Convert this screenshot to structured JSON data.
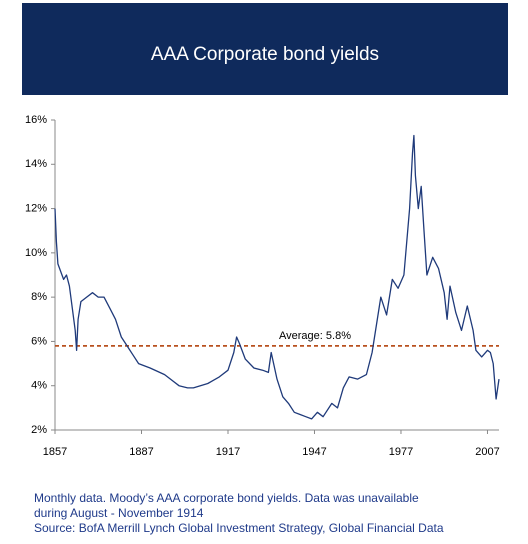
{
  "chart_data": {
    "type": "line",
    "title": "AAA Corporate bond yields",
    "x": [
      1857,
      1857.5,
      1858,
      1860,
      1861,
      1862,
      1863,
      1864,
      1864.5,
      1865,
      1866,
      1868,
      1870,
      1872,
      1874,
      1876,
      1878,
      1880,
      1882,
      1884,
      1886,
      1890,
      1895,
      1900,
      1903,
      1905,
      1910,
      1914,
      1917,
      1919,
      1920,
      1921,
      1923,
      1926,
      1929,
      1931,
      1932,
      1934,
      1936,
      1938,
      1940,
      1942,
      1944,
      1946,
      1948,
      1950,
      1953,
      1955,
      1957,
      1959,
      1962,
      1965,
      1967,
      1970,
      1972,
      1974,
      1976,
      1978,
      1980,
      1981,
      1981.5,
      1982,
      1983,
      1984,
      1985,
      1986,
      1988,
      1990,
      1992,
      1993,
      1994,
      1996,
      1998,
      2000,
      2002,
      2003,
      2005,
      2007,
      2008,
      2009,
      2010,
      2011
    ],
    "series": [
      {
        "name": "Moody's AAA corporate bond yield",
        "color": "#1f3a7a",
        "values": [
          12,
          10.5,
          9.5,
          8.8,
          9,
          8.5,
          7.5,
          6.5,
          5.6,
          7,
          7.8,
          8,
          8.2,
          8,
          8,
          7.5,
          7,
          6.2,
          5.8,
          5.4,
          5,
          4.8,
          4.5,
          4,
          3.9,
          3.9,
          4.1,
          4.4,
          4.7,
          5.5,
          6.2,
          5.9,
          5.2,
          4.8,
          4.7,
          4.6,
          5.5,
          4.3,
          3.5,
          3.2,
          2.8,
          2.7,
          2.6,
          2.5,
          2.8,
          2.6,
          3.2,
          3,
          3.9,
          4.4,
          4.3,
          4.5,
          5.5,
          8,
          7.2,
          8.8,
          8.4,
          9,
          12,
          14.5,
          15.3,
          13.5,
          12,
          13,
          11,
          9,
          9.8,
          9.3,
          8.2,
          7,
          8.5,
          7.3,
          6.5,
          7.6,
          6.5,
          5.6,
          5.3,
          5.6,
          5.5,
          5,
          3.4,
          4.3
        ]
      }
    ],
    "average": {
      "value": 5.8,
      "label": "Average: 5.8%",
      "color": "#b8501e"
    },
    "xlim": [
      1857,
      2011
    ],
    "xticks": [
      1857,
      1887,
      1917,
      1947,
      1977,
      2007
    ],
    "ylim": [
      2,
      16
    ],
    "yticks": [
      {
        "value": 2,
        "label": "2%"
      },
      {
        "value": 4,
        "label": "4%"
      },
      {
        "value": 6,
        "label": "6%"
      },
      {
        "value": 8,
        "label": "8%"
      },
      {
        "value": 10,
        "label": "10%"
      },
      {
        "value": 12,
        "label": "12%"
      },
      {
        "value": 14,
        "label": "14%"
      },
      {
        "value": 16,
        "label": "16%"
      }
    ],
    "notes": [
      "Monthly data. Moody’s AAA corporate bond yields. Data was unavailable",
      "during August - November 1914",
      "Source: BofA Merrill Lynch Global Investment Strategy, Global Financial Data"
    ]
  }
}
